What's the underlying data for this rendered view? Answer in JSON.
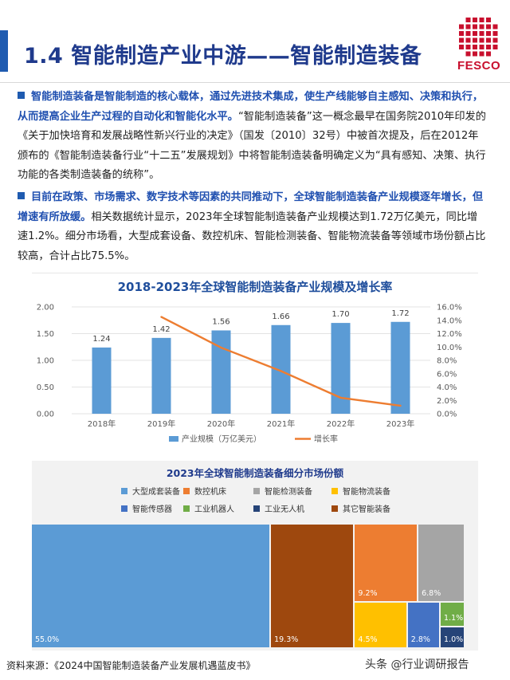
{
  "header": {
    "title": "1.4 智能制造产业中游——智能制造装备",
    "logo_text": "FESCO"
  },
  "paragraphs": [
    {
      "bold": "智能制造装备是智能制造的核心载体，通过先进技术集成，使生产线能够自主感知、决策和执行，从而提高企业生产过程的自动化和智能化水平。",
      "normal": "“智能制造装备”这一概念最早在国务院2010年印发的《关于加快培育和发展战略性新兴行业的决定》（国发〔2010〕32号）中被首次提及，后在2012年颁布的《智能制造装备行业“十二五”发展规划》中将智能制造装备明确定义为“具有感知、决策、执行功能的各类制造装备的统称”。"
    },
    {
      "bold": "目前在政策、市场需求、数字技术等因素的共同推动下，全球智能制造装备产业规模逐年增长，但增速有所放缓。",
      "normal": "相关数据统计显示，2023年全球智能制造装备产业规模达到1.72万亿美元，同比增速1.2%。细分市场看，大型成套设备、数控机床、智能检测装备、智能物流装备等领域市场份额占比较高，合计占比75.5%。"
    }
  ],
  "chart_data": [
    {
      "type": "bar",
      "title": "2018-2023年全球智能制造装备产业规模及增长率",
      "categories": [
        "2018年",
        "2019年",
        "2020年",
        "2021年",
        "2022年",
        "2023年"
      ],
      "series": [
        {
          "name": "产业规模（万亿美元）",
          "type": "bar",
          "axis": "left",
          "values": [
            1.24,
            1.42,
            1.56,
            1.66,
            1.7,
            1.72
          ],
          "color": "#5b9bd5"
        },
        {
          "name": "增长率",
          "type": "line",
          "axis": "right",
          "x": [
            "2019年",
            "2020年",
            "2021年",
            "2022年",
            "2023年"
          ],
          "values": [
            14.5,
            9.9,
            6.4,
            2.4,
            1.2
          ],
          "color": "#ed7d31"
        }
      ],
      "ylim": [
        0,
        2.0
      ],
      "y_ticks": [
        "0.00",
        "0.50",
        "1.00",
        "1.50",
        "2.00"
      ],
      "y2lim": [
        0,
        16
      ],
      "y2_ticks": [
        "0.0%",
        "2.0%",
        "4.0%",
        "6.0%",
        "8.0%",
        "10.0%",
        "12.0%",
        "14.0%",
        "16.0%"
      ],
      "data_labels": [
        "1.24",
        "1.42",
        "1.56",
        "1.66",
        "1.70",
        "1.72"
      ],
      "grid": true,
      "legend": "bottom"
    },
    {
      "type": "treemap",
      "title": "2023年全球智能制造装备细分市场份额",
      "legend": "top",
      "items": [
        {
          "name": "大型成套装备",
          "value": 55.0,
          "label": "55.0%",
          "color": "#5b9bd5"
        },
        {
          "name": "数控机床",
          "value": 9.2,
          "label": "9.2%",
          "color": "#ed7d31"
        },
        {
          "name": "智能检测装备",
          "value": 6.8,
          "label": "6.8%",
          "color": "#a5a5a5"
        },
        {
          "name": "智能物流装备",
          "value": 4.5,
          "label": "4.5%",
          "color": "#ffc000"
        },
        {
          "name": "智能传感器",
          "value": 2.8,
          "label": "2.8%",
          "color": "#4472c4"
        },
        {
          "name": "工业机器人",
          "value": 1.1,
          "label": "1.1%",
          "color": "#70ad47"
        },
        {
          "name": "工业无人机",
          "value": 1.0,
          "label": "1.0%",
          "color": "#264478"
        },
        {
          "name": "其它智能装备",
          "value": 19.3,
          "label": "19.3%",
          "color": "#9e480e"
        }
      ]
    }
  ],
  "footer": {
    "source": "资料来源：《2024中国智能制造装备产业发展机遇蓝皮书》",
    "watermark": "头条 @行业调研报告"
  }
}
